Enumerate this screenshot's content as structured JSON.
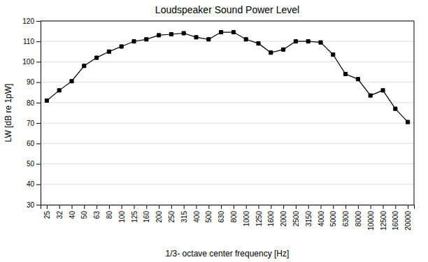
{
  "chart_data": {
    "type": "line",
    "title": "Loudspeaker Sound Power Level",
    "xlabel": "1/3- octave center frequency [Hz]",
    "ylabel": "LW [dB re 1pW]",
    "categories": [
      "25",
      "32",
      "40",
      "50",
      "63",
      "80",
      "100",
      "125",
      "160",
      "200",
      "250",
      "315",
      "400",
      "500",
      "630",
      "800",
      "1000",
      "1250",
      "1600",
      "2000",
      "2500",
      "3150",
      "4000",
      "5000",
      "6300",
      "8000",
      "10000",
      "12500",
      "16000",
      "20000"
    ],
    "values": [
      81,
      86,
      90.5,
      98,
      102,
      105,
      107.5,
      110,
      111,
      113,
      113.5,
      114,
      112,
      111,
      114.5,
      114.5,
      111,
      109,
      104.5,
      106,
      110,
      110,
      109.5,
      103.5,
      94,
      91.5,
      83.5,
      86,
      77,
      70.5
    ],
    "color": "#000000",
    "marker": "square",
    "ylim": [
      30,
      120
    ],
    "yticks": [
      30,
      40,
      50,
      60,
      70,
      80,
      90,
      100,
      110,
      120
    ],
    "grid": true
  }
}
